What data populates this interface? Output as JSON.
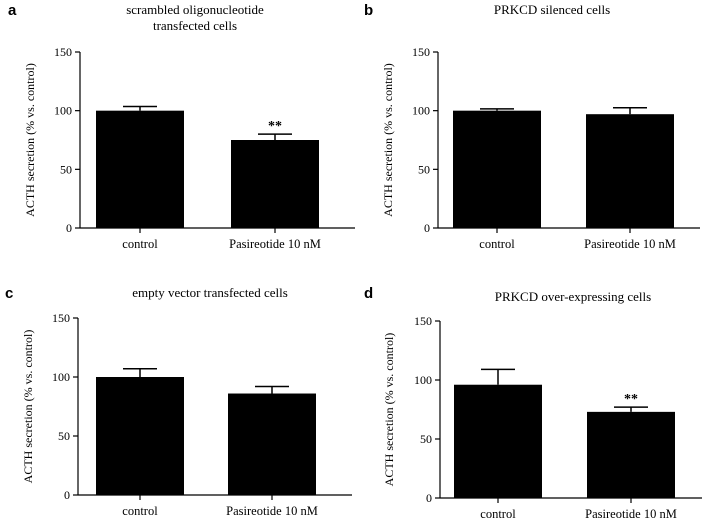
{
  "chart_data": [
    {
      "type": "bar",
      "panel": "a",
      "title": [
        "scrambled oligonucleotide",
        "transfected cells"
      ],
      "ylabel": "ACTH secretion (% vs. control)",
      "xlabel": "",
      "categories": [
        "control",
        "Pasireotide 10 nM"
      ],
      "values": [
        100,
        75
      ],
      "errors": [
        3.5,
        5
      ],
      "significance": [
        "",
        "**"
      ],
      "ylim": [
        0,
        150
      ],
      "yticks": [
        "0",
        "50",
        "100",
        "150"
      ]
    },
    {
      "type": "bar",
      "panel": "b",
      "title": [
        "PRKCD silenced cells"
      ],
      "ylabel": "ACTH secretion (% vs. control)",
      "xlabel": "",
      "categories": [
        "control",
        "Pasireotide 10 nM"
      ],
      "values": [
        100,
        97
      ],
      "errors": [
        1.5,
        5.5
      ],
      "significance": [
        "",
        ""
      ],
      "ylim": [
        0,
        150
      ],
      "yticks": [
        "0",
        "50",
        "100",
        "150"
      ]
    },
    {
      "type": "bar",
      "panel": "c",
      "title": [
        "empty vector transfected cells"
      ],
      "ylabel": "ACTH secretion (% vs. control)",
      "xlabel": "",
      "categories": [
        "control",
        "Pasireotide 10 nM"
      ],
      "values": [
        100,
        86
      ],
      "errors": [
        7,
        6
      ],
      "significance": [
        "",
        ""
      ],
      "ylim": [
        0,
        150
      ],
      "yticks": [
        "0",
        "50",
        "100",
        "150"
      ]
    },
    {
      "type": "bar",
      "panel": "d",
      "title": [
        "PRKCD over-expressing cells"
      ],
      "ylabel": "ACTH secretion (% vs. control)",
      "xlabel": "",
      "categories": [
        "control",
        "Pasireotide 10 nM"
      ],
      "values": [
        96,
        73
      ],
      "errors": [
        13,
        4
      ],
      "significance": [
        "",
        "**"
      ],
      "ylim": [
        0,
        150
      ],
      "yticks": [
        "0",
        "50",
        "100",
        "150"
      ]
    }
  ],
  "colors": {
    "bar": "#000000",
    "axis": "#000000",
    "background": "#ffffff"
  }
}
